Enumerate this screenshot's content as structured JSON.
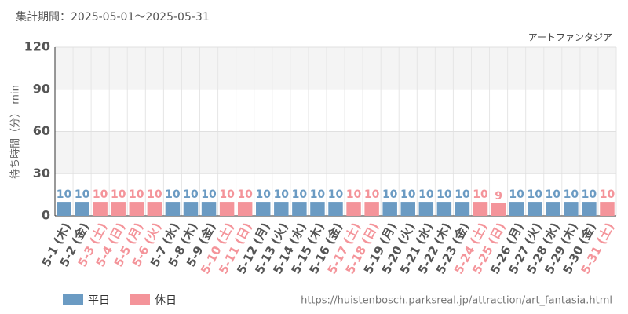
{
  "chart_data": {
    "type": "bar",
    "title": "集計期間：2025-05-01～2025-05-31",
    "subtitle": "アートファンタジア",
    "y_label": "待ち時間（分） min",
    "source": "https://huistenbosch.parksreal.jp/attraction/art_fantasia.html",
    "categories": [
      "5-1 (木)",
      "5-2 (金)",
      "5-3 (土)",
      "5-4 (日)",
      "5-5 (月)",
      "5-6 (火)",
      "5-7 (水)",
      "5-8 (木)",
      "5-9 (金)",
      "5-10 (土)",
      "5-11 (日)",
      "5-12 (月)",
      "5-13 (火)",
      "5-14 (水)",
      "5-15 (木)",
      "5-16 (金)",
      "5-17 (土)",
      "5-18 (日)",
      "5-19 (月)",
      "5-20 (火)",
      "5-21 (水)",
      "5-22 (木)",
      "5-23 (金)",
      "5-24 (土)",
      "5-25 (日)",
      "5-26 (月)",
      "5-27 (火)",
      "5-28 (水)",
      "5-29 (木)",
      "5-30 (金)",
      "5-31 (土)"
    ],
    "series": [
      {
        "name": "平日",
        "color": "#6b9bc3",
        "values": [
          10,
          10,
          null,
          null,
          null,
          null,
          10,
          10,
          10,
          null,
          null,
          10,
          10,
          10,
          10,
          10,
          null,
          null,
          10,
          10,
          10,
          10,
          10,
          null,
          null,
          10,
          10,
          10,
          10,
          10,
          null
        ]
      },
      {
        "name": "休日",
        "color": "#f4949a",
        "values": [
          null,
          null,
          10,
          10,
          10,
          10,
          null,
          null,
          null,
          10,
          10,
          null,
          null,
          null,
          null,
          null,
          10,
          10,
          null,
          null,
          null,
          null,
          null,
          10,
          9,
          null,
          null,
          null,
          null,
          null,
          10
        ]
      }
    ],
    "ylim": [
      0,
      120
    ],
    "yticks": [
      0,
      30,
      60,
      90,
      120
    ],
    "grid": true
  }
}
